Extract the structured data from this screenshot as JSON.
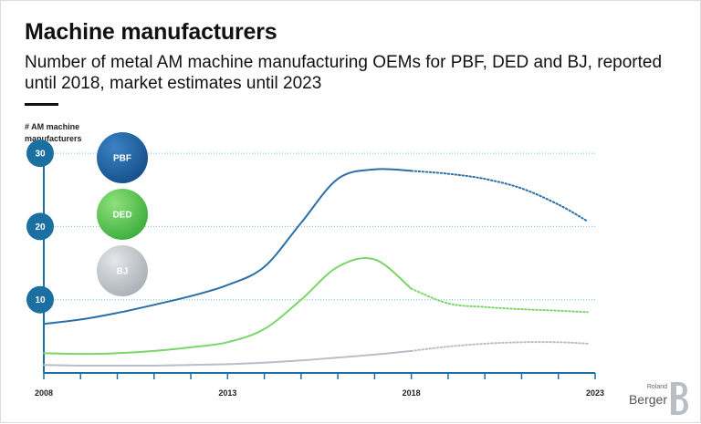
{
  "header": {
    "title": "Machine manufacturers",
    "subtitle": "Number of metal AM machine manufacturing OEMs for PBF, DED and BJ, reported until 2018, market estimates until 2023"
  },
  "logo": {
    "top_word": "Roland",
    "bottom_word": "Berger"
  },
  "colors": {
    "pbf": "#2a6fa8",
    "ded": "#7bd66a",
    "bj": "#b8bec6",
    "axis": "#1b6fa1",
    "grid": "#6fc3d8"
  },
  "chart_data": {
    "type": "line",
    "title": "Machine manufacturers",
    "ylabel": "# AM machine manufacturers",
    "xlabel": "",
    "xlim": [
      2008,
      2023
    ],
    "ylim": [
      0,
      33
    ],
    "x_tick_labels": [
      "2008",
      "2013",
      "2018",
      "2023"
    ],
    "x_ticks": [
      2008,
      2009,
      2010,
      2011,
      2012,
      2013,
      2014,
      2015,
      2016,
      2017,
      2018,
      2019,
      2020,
      2021,
      2022,
      2023
    ],
    "y_tick_labels": [
      "10",
      "20",
      "30"
    ],
    "y_ticks": [
      10,
      20,
      30
    ],
    "reported_until": 2018,
    "legend": [
      "PBF",
      "DED",
      "BJ"
    ],
    "legend_position": "top-left",
    "series": [
      {
        "name": "PBF",
        "x": [
          2008,
          2009,
          2010,
          2011,
          2012,
          2013,
          2014,
          2015,
          2016,
          2017,
          2018,
          2019,
          2020,
          2021,
          2022,
          2022.8
        ],
        "y": [
          6.7,
          7.3,
          8.2,
          9.3,
          10.5,
          12.0,
          14.5,
          20.5,
          26.5,
          27.8,
          27.6,
          27.2,
          26.5,
          25.2,
          23.0,
          20.7
        ]
      },
      {
        "name": "DED",
        "x": [
          2008,
          2009,
          2010,
          2011,
          2012,
          2013,
          2014,
          2015,
          2016,
          2017,
          2018,
          2019,
          2020,
          2021,
          2022,
          2022.8
        ],
        "y": [
          2.7,
          2.6,
          2.7,
          3.0,
          3.5,
          4.2,
          6.0,
          10.0,
          14.5,
          15.5,
          11.5,
          9.5,
          9.0,
          8.7,
          8.5,
          8.3
        ]
      },
      {
        "name": "BJ",
        "x": [
          2008,
          2009,
          2010,
          2011,
          2012,
          2013,
          2014,
          2015,
          2016,
          2017,
          2018,
          2019,
          2020,
          2021,
          2022,
          2022.8
        ],
        "y": [
          1.1,
          1.0,
          1.0,
          1.0,
          1.1,
          1.2,
          1.4,
          1.7,
          2.1,
          2.5,
          3.0,
          3.6,
          4.0,
          4.2,
          4.2,
          4.0
        ]
      }
    ]
  }
}
